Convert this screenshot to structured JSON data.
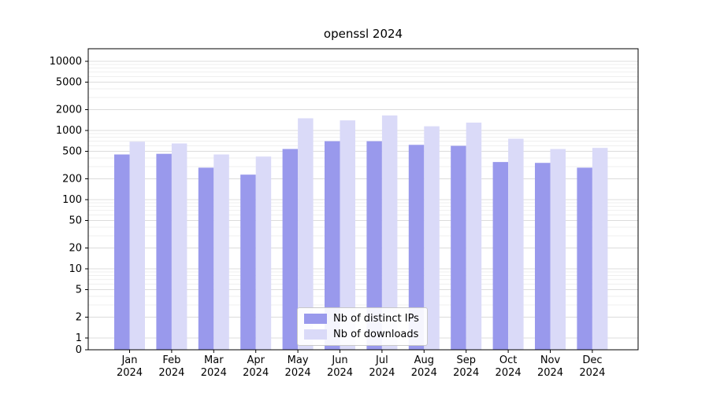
{
  "chart_data": {
    "type": "bar",
    "title": "openssl 2024",
    "categories": [
      "Jan 2024",
      "Feb 2024",
      "Mar 2024",
      "Apr 2024",
      "May 2024",
      "Jun 2024",
      "Jul 2024",
      "Aug 2024",
      "Sep 2024",
      "Oct 2024",
      "Nov 2024",
      "Dec 2024"
    ],
    "series": [
      {
        "name": "Nb of distinct IPs",
        "color": "#9999ec",
        "values": [
          450,
          460,
          290,
          230,
          540,
          700,
          700,
          620,
          600,
          350,
          340,
          290
        ]
      },
      {
        "name": "Nb of downloads",
        "color": "#dadaf8",
        "values": [
          690,
          650,
          450,
          420,
          1500,
          1400,
          1650,
          1150,
          1300,
          760,
          540,
          560
        ]
      }
    ],
    "xlabel": "",
    "ylabel": "",
    "yscale": "symlog",
    "ylim": [
      0,
      10000
    ],
    "yticks": [
      10000,
      5000,
      2000,
      1000,
      500,
      200,
      100,
      50,
      20,
      10,
      5,
      2,
      1,
      0
    ],
    "grid": true,
    "legend_position": "lower center"
  }
}
